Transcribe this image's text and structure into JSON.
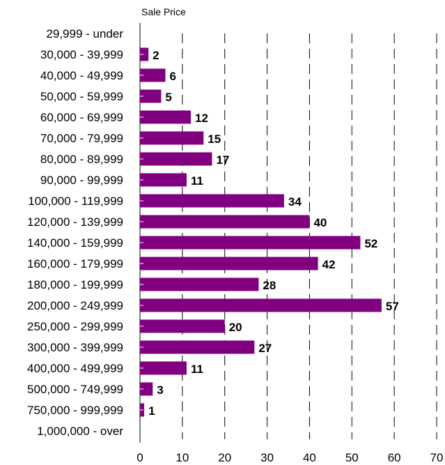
{
  "chart_data": {
    "type": "bar",
    "orientation": "horizontal",
    "title": "Sale Price",
    "categories": [
      "29,999 - under",
      "30,000 - 39,999",
      "40,000 - 49,999",
      "50,000 - 59,999",
      "60,000 - 69,999",
      "70,000 - 79,999",
      "80,000 - 89,999",
      "90,000 - 99,999",
      "100,000 - 119,999",
      "120,000 - 139,999",
      "140,000 - 159,999",
      "160,000 - 179,999",
      "180,000 - 199,999",
      "200,000 - 249,999",
      "250,000 - 299,999",
      "300,000 - 399,999",
      "400,000 - 499,999",
      "500,000 - 749,999",
      "750,000 - 999,999",
      "1,000,000 - over"
    ],
    "values": [
      null,
      2,
      6,
      5,
      12,
      15,
      17,
      11,
      34,
      40,
      52,
      42,
      28,
      57,
      20,
      27,
      11,
      3,
      1,
      null
    ],
    "xlim": [
      0,
      70
    ],
    "xticks": [
      0,
      10,
      20,
      30,
      40,
      50,
      60,
      70
    ],
    "bar_color": "#800080",
    "grid": "vertical dashed",
    "data_labels": true
  }
}
